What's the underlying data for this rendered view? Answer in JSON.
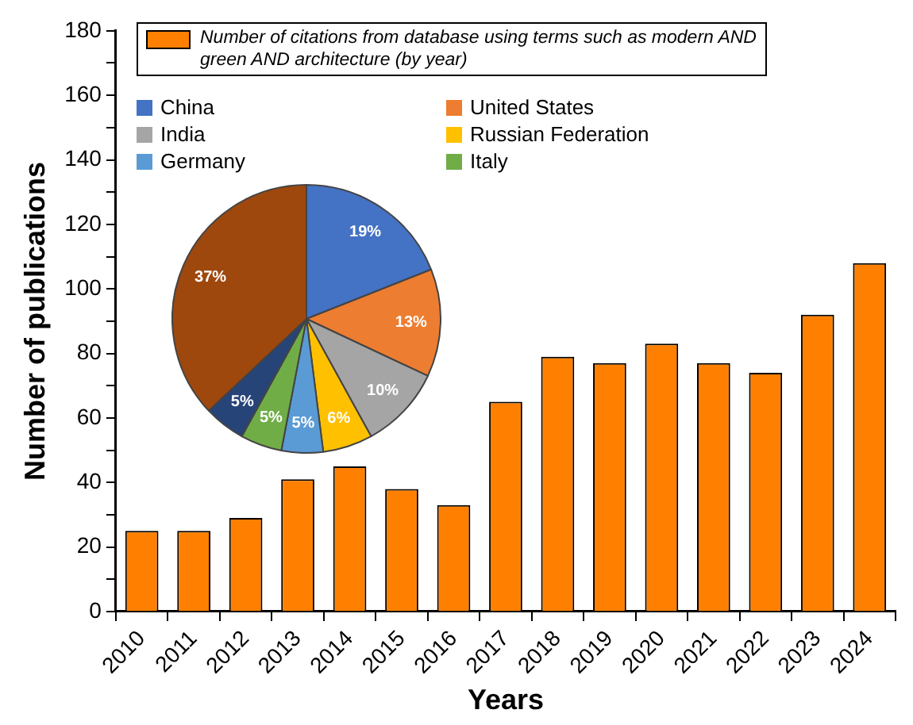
{
  "chart_data": [
    {
      "type": "bar",
      "categories": [
        "2010",
        "2011",
        "2012",
        "2013",
        "2014",
        "2015",
        "2016",
        "2017",
        "2018",
        "2019",
        "2020",
        "2021",
        "2022",
        "2023",
        "2024"
      ],
      "series": [
        {
          "name": "Number of citations from database using terms such as modern AND green AND architecture (by year)",
          "color": "#ff8000",
          "values": [
            25,
            25,
            29,
            41,
            45,
            38,
            33,
            65,
            79,
            77,
            83,
            77,
            74,
            92,
            108
          ]
        }
      ],
      "xlabel": "Years",
      "ylabel": "Number of publications",
      "ylim": [
        0,
        180
      ],
      "yticks": [
        0,
        {
          "value": 10,
          "label": null
        },
        20,
        {
          "value": 30,
          "label": null
        },
        40,
        {
          "value": 50,
          "label": null
        },
        60,
        {
          "value": 70,
          "label": null
        },
        80,
        {
          "value": 90,
          "label": null
        },
        100,
        {
          "value": 110,
          "label": null
        },
        120,
        {
          "value": 130,
          "label": null
        },
        140,
        {
          "value": 150,
          "label": null
        },
        160,
        {
          "value": 170,
          "label": null
        },
        180
      ],
      "legend": "top"
    },
    {
      "type": "pie",
      "categories": [
        "China",
        "United States",
        "India",
        "Russian Federation",
        "Germany",
        "Italy",
        null,
        null
      ],
      "values": [
        19,
        13,
        10,
        6,
        5,
        5,
        5,
        37
      ],
      "colors": [
        "#4472c4",
        "#ed7d31",
        "#a5a5a5",
        "#ffc000",
        "#5b9bd5",
        "#70ad47",
        "#264478",
        "#9e480e"
      ],
      "value_labels": [
        "19%",
        "13%",
        "10%",
        "6%",
        "5%",
        "5%",
        "5%",
        "37%"
      ],
      "legend": "top"
    }
  ]
}
